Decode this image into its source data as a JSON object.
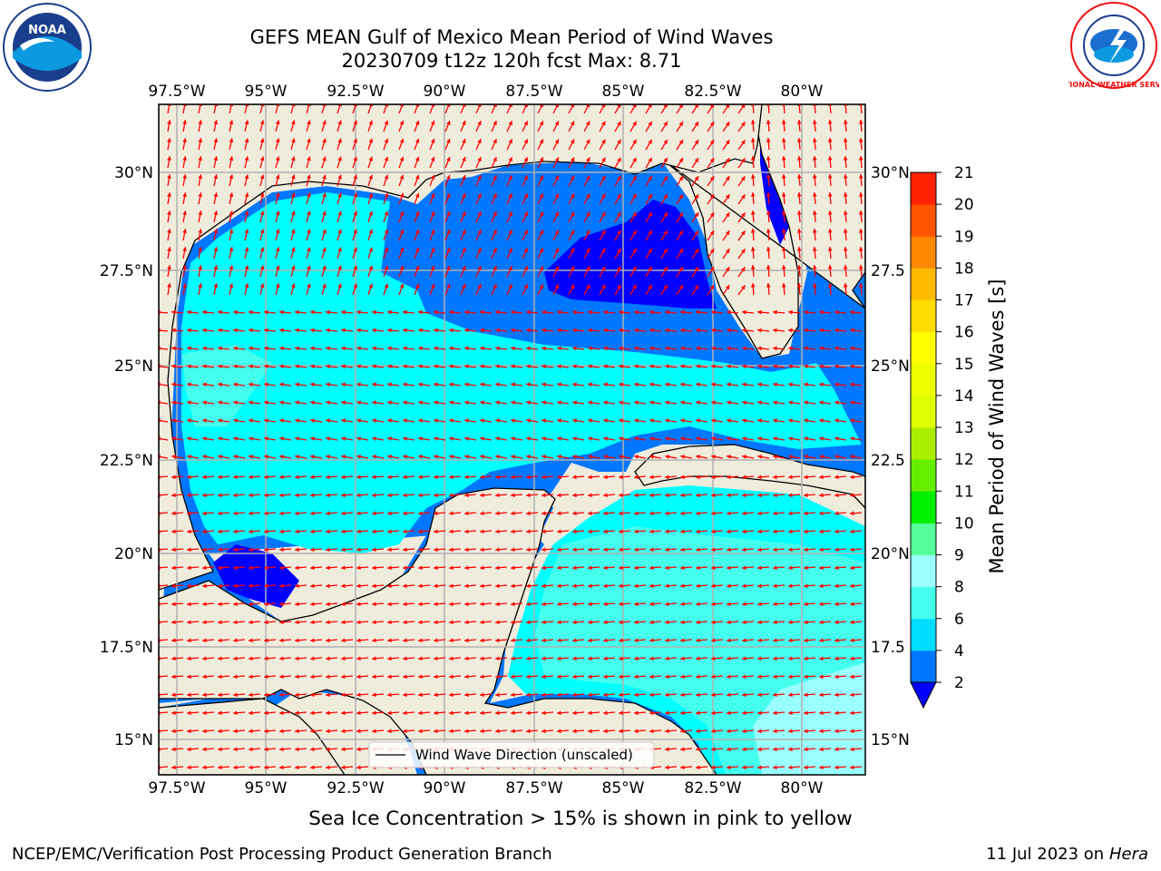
{
  "header": {
    "title_line1": "GEFS MEAN Gulf of Mexico Mean Period of Wind Waves",
    "title_line2": "20230709 t12z 120h fcst   Max: 8.71"
  },
  "logos": {
    "left": {
      "icon": "noaa-logo",
      "text": "NOAA"
    },
    "right": {
      "icon": "national-weather-service-logo",
      "text": "NATIONAL WEATHER SERVICE"
    }
  },
  "map": {
    "lon_ticks": [
      "97.5°W",
      "95°W",
      "92.5°W",
      "90°W",
      "87.5°W",
      "85°W",
      "82.5°W",
      "80°W"
    ],
    "lat_ticks_left": [
      "30°N",
      "27.5°N",
      "25°N",
      "22.5°N",
      "20°N",
      "17.5°N",
      "15°N"
    ],
    "lat_ticks_right": [
      "30°N",
      "27.5",
      "25°N",
      "22.5",
      "20°N",
      "17.5",
      "15°N"
    ],
    "lon_range": [
      -98,
      -78.2
    ],
    "lat_range": [
      14,
      31.7
    ],
    "ocean_color": "#00ffff",
    "land_color": "#efecdc",
    "grid_color": "#b0b0b0",
    "arrow_color": "#ff0000",
    "legend_label": "Wind Wave Direction (unscaled)"
  },
  "colorbar": {
    "label": "Mean Period of Wind Waves [s]",
    "ticks": [
      "2",
      "4",
      "6",
      "8",
      "9",
      "10",
      "11",
      "12",
      "13",
      "14",
      "15",
      "16",
      "17",
      "18",
      "19",
      "20",
      "21"
    ],
    "colors": [
      "#0077ff",
      "#00ddff",
      "#44ffee",
      "#99ffff",
      "#55ff99",
      "#00ee00",
      "#66ee00",
      "#aaee00",
      "#ddff00",
      "#eeff00",
      "#ffff00",
      "#ffdd00",
      "#ffbb00",
      "#ff8800",
      "#ff5500",
      "#ff2200"
    ],
    "under_color": "#0000ff"
  },
  "note": "Sea Ice Concentration > 15% is shown in pink to yellow",
  "footer": {
    "left": "NCEP/EMC/Verification Post Processing Product Generation Branch",
    "right_prefix": "11 Jul 2023 on ",
    "right_host": "Hera"
  }
}
